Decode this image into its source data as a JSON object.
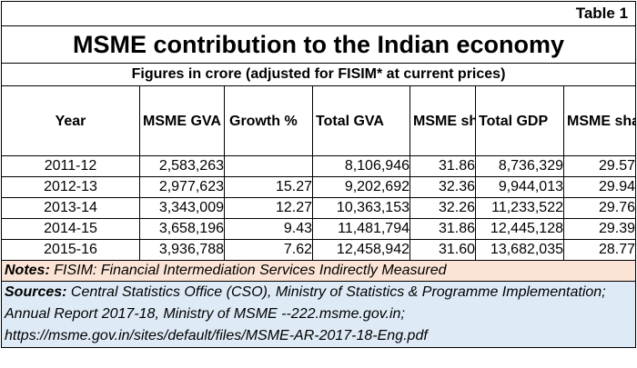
{
  "table_tag": "Table 1",
  "title": "MSME contribution to the Indian economy",
  "subtitle": "Figures in crore (adjusted for FISIM* at current prices)",
  "headers": [
    "Year",
    "MSME GVA",
    "Growth %",
    "Total GVA",
    "MSME share in GVA (%)",
    "Total GDP",
    "MSME share of GDP %"
  ],
  "rows": [
    [
      "2011-12",
      "2,583,263",
      "",
      "8,106,946",
      "31.86",
      "8,736,329",
      "29.57"
    ],
    [
      "2012-13",
      "2,977,623",
      "15.27",
      "9,202,692",
      "32.36",
      "9,944,013",
      "29.94"
    ],
    [
      "2013-14",
      "3,343,009",
      "12.27",
      "10,363,153",
      "32.26",
      "11,233,522",
      "29.76"
    ],
    [
      "2014-15",
      "3,658,196",
      "9.43",
      "11,481,794",
      "31.86",
      "12,445,128",
      "29.39"
    ],
    [
      "2015-16",
      "3,936,788",
      "7.62",
      "12,458,942",
      "31.60",
      "13,682,035",
      "28.77"
    ]
  ],
  "notes": {
    "label": "Notes:",
    "text": " FISIM: Financial Intermediation Services Indirectly Measured"
  },
  "sources": {
    "label": "Sources:",
    "text": " Central Statistics Office (CSO), Ministry of Statistics & Programme Implementation; Annual Report 2017-18, Ministry of MSME --222.msme.gov.in; https://msme.gov.in/sites/default/files/MSME-AR-2017-18-Eng.pdf"
  }
}
